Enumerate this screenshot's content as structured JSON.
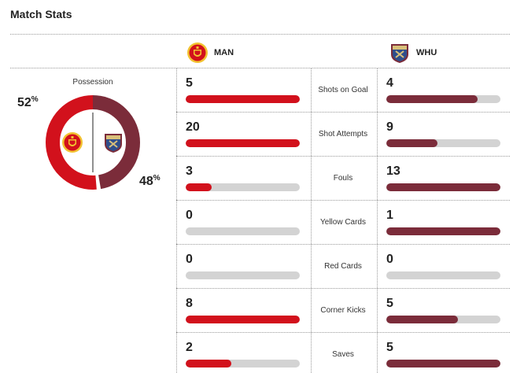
{
  "header": {
    "title": "Match Stats"
  },
  "teams": {
    "home": {
      "abbr": "MAN",
      "color": "#d2111c",
      "logo_icon": "man-utd-crest-icon"
    },
    "away": {
      "abbr": "WHU",
      "color": "#7b2c3a",
      "logo_icon": "west-ham-crest-icon"
    }
  },
  "possession": {
    "label": "Possession",
    "home_pct": "52",
    "away_pct": "48",
    "pct_symbol": "%"
  },
  "stats": [
    {
      "label": "Shots on Goal",
      "home": "5",
      "away": "4",
      "home_fill": 1.0,
      "away_fill": 0.8
    },
    {
      "label": "Shot Attempts",
      "home": "20",
      "away": "9",
      "home_fill": 1.0,
      "away_fill": 0.45
    },
    {
      "label": "Fouls",
      "home": "3",
      "away": "13",
      "home_fill": 0.23,
      "away_fill": 1.0
    },
    {
      "label": "Yellow Cards",
      "home": "0",
      "away": "1",
      "home_fill": 0.0,
      "away_fill": 1.0
    },
    {
      "label": "Red Cards",
      "home": "0",
      "away": "0",
      "home_fill": 0.0,
      "away_fill": 0.0
    },
    {
      "label": "Corner Kicks",
      "home": "8",
      "away": "5",
      "home_fill": 1.0,
      "away_fill": 0.63
    },
    {
      "label": "Saves",
      "home": "2",
      "away": "5",
      "home_fill": 0.4,
      "away_fill": 1.0
    }
  ]
}
